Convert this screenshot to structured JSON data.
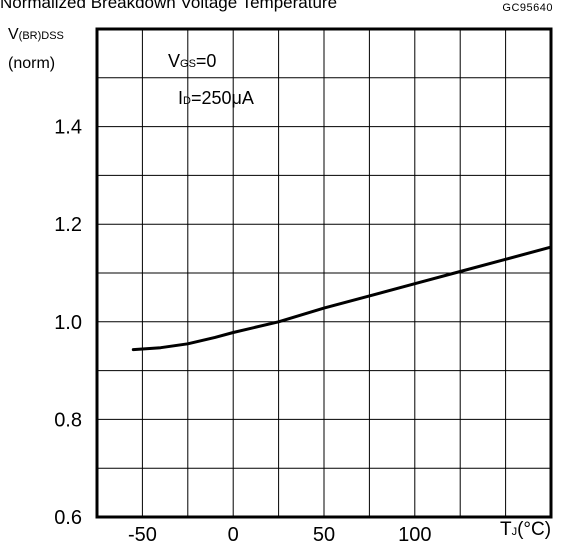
{
  "chart_data": {
    "type": "line",
    "title": "Normalized Breakdown Voltage Temperature",
    "figure_code": "GC95640",
    "ylabel": {
      "main": "V",
      "sub": "(BR)DSS",
      "line2": "(norm)"
    },
    "xlabel": {
      "main": "T",
      "sub": "J",
      "unit": "(°C)"
    },
    "annotations": [
      {
        "main": "V",
        "sub": "GS",
        "rest": "=0"
      },
      {
        "main": "I",
        "sub": "D",
        "rest": "=250μA"
      }
    ],
    "xlim": [
      -75,
      175
    ],
    "ylim": [
      0.6,
      1.6
    ],
    "x_ticks": [
      -50,
      0,
      50,
      100
    ],
    "x_tick_labels": [
      "-50",
      "0",
      "50",
      "100"
    ],
    "y_ticks": [
      0.6,
      0.8,
      1.0,
      1.2,
      1.4
    ],
    "y_tick_labels": [
      "0.6",
      "0.8",
      "1.0",
      "1.2",
      "1.4"
    ],
    "grid": true,
    "x_grid_step": 25,
    "y_grid_step": 0.1,
    "series": [
      {
        "x": [
          -55,
          -40,
          -25,
          -10,
          0,
          25,
          50,
          75,
          100,
          125,
          150,
          175
        ],
        "values": [
          0.943,
          0.947,
          0.955,
          0.968,
          0.978,
          1.0,
          1.028,
          1.053,
          1.078,
          1.103,
          1.128,
          1.153
        ]
      }
    ]
  }
}
